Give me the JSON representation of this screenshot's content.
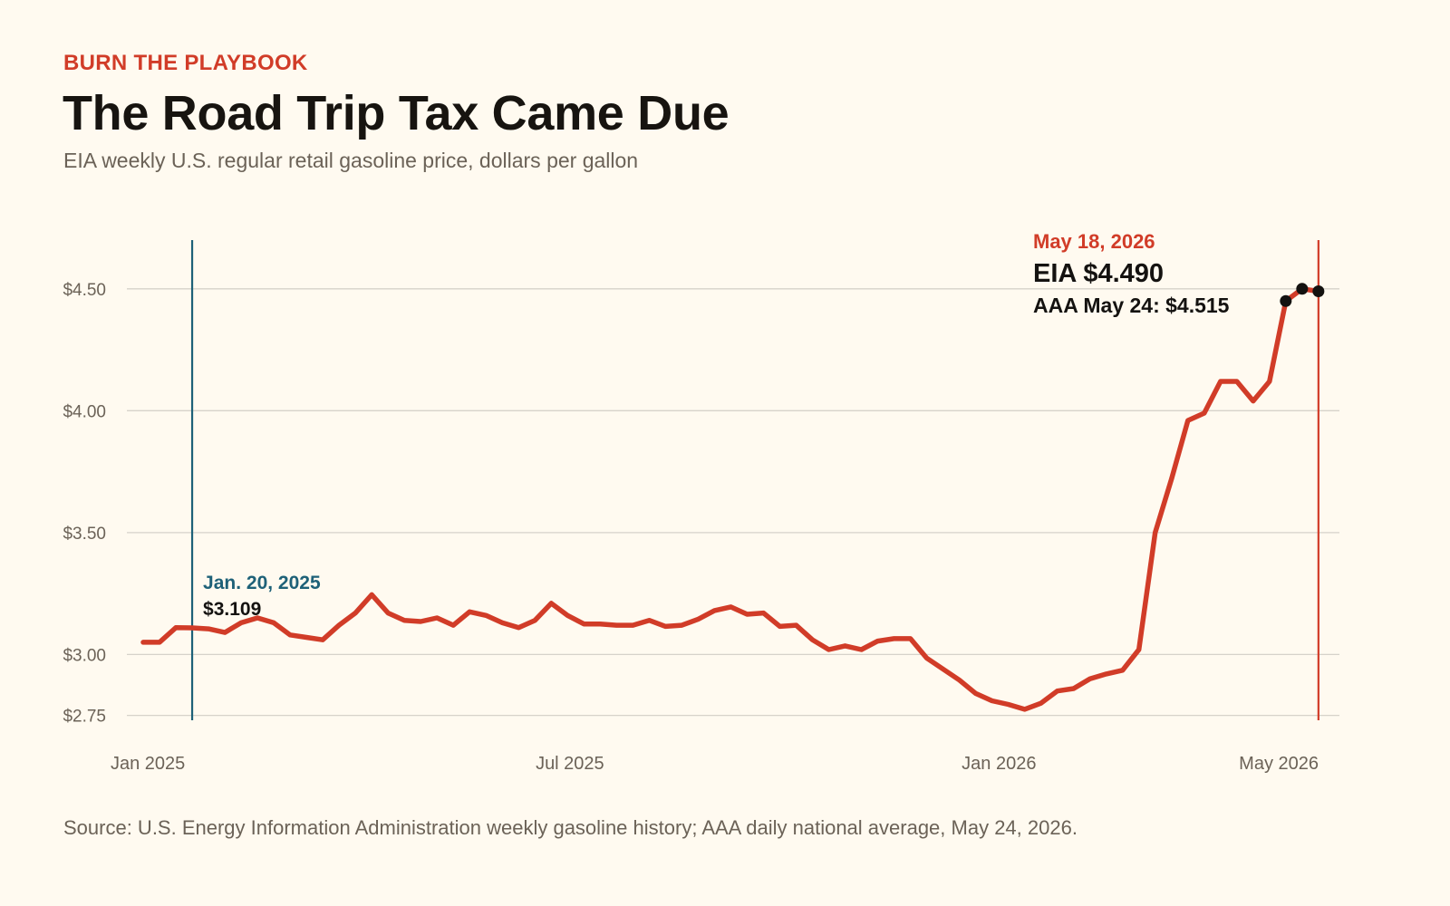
{
  "header": {
    "kicker": "BURN THE PLAYBOOK",
    "title": "The Road Trip Tax Came Due",
    "subtitle": "EIA weekly U.S. regular retail gasoline price, dollars per gallon"
  },
  "footer": {
    "source": "Source: U.S. Energy Information Administration weekly gasoline history; AAA daily national average, May 24, 2026."
  },
  "colors": {
    "line": "#d13c28",
    "accent_red": "#d13c28",
    "accent_blue": "#1e6178",
    "grid": "#d6d2ca",
    "dots": "#141210"
  },
  "chart_data": {
    "type": "line",
    "ylim": [
      2.73,
      4.7
    ],
    "yticks": [
      {
        "value": 2.75,
        "label": "$2.75"
      },
      {
        "value": 3.0,
        "label": "$3.00"
      },
      {
        "value": 3.5,
        "label": "$3.50"
      },
      {
        "value": 4.0,
        "label": "$4.00"
      },
      {
        "value": 4.5,
        "label": "$4.50"
      }
    ],
    "xlim": [
      "2024-12-23",
      "2026-05-27"
    ],
    "xticks": [
      {
        "date": "2025-01-01",
        "label": "Jan 2025"
      },
      {
        "date": "2025-07-01",
        "label": "Jul 2025"
      },
      {
        "date": "2026-01-01",
        "label": "Jan 2026"
      },
      {
        "date": "2026-05-01",
        "label": "May 2026"
      }
    ],
    "grid": true,
    "series": [
      {
        "points": [
          [
            "2024-12-30",
            3.05
          ],
          [
            "2025-01-06",
            3.05
          ],
          [
            "2025-01-13",
            3.11
          ],
          [
            "2025-01-20",
            3.109
          ],
          [
            "2025-01-27",
            3.105
          ],
          [
            "2025-02-03",
            3.09
          ],
          [
            "2025-02-10",
            3.13
          ],
          [
            "2025-02-17",
            3.15
          ],
          [
            "2025-02-24",
            3.13
          ],
          [
            "2025-03-03",
            3.08
          ],
          [
            "2025-03-10",
            3.07
          ],
          [
            "2025-03-17",
            3.06
          ],
          [
            "2025-03-24",
            3.12
          ],
          [
            "2025-03-31",
            3.17
          ],
          [
            "2025-04-07",
            3.245
          ],
          [
            "2025-04-14",
            3.17
          ],
          [
            "2025-04-21",
            3.14
          ],
          [
            "2025-04-28",
            3.135
          ],
          [
            "2025-05-05",
            3.15
          ],
          [
            "2025-05-12",
            3.12
          ],
          [
            "2025-05-19",
            3.175
          ],
          [
            "2025-05-26",
            3.16
          ],
          [
            "2025-06-02",
            3.13
          ],
          [
            "2025-06-09",
            3.11
          ],
          [
            "2025-06-16",
            3.14
          ],
          [
            "2025-06-23",
            3.21
          ],
          [
            "2025-06-30",
            3.16
          ],
          [
            "2025-07-07",
            3.125
          ],
          [
            "2025-07-14",
            3.125
          ],
          [
            "2025-07-21",
            3.12
          ],
          [
            "2025-07-28",
            3.12
          ],
          [
            "2025-08-04",
            3.14
          ],
          [
            "2025-08-11",
            3.115
          ],
          [
            "2025-08-18",
            3.12
          ],
          [
            "2025-08-25",
            3.145
          ],
          [
            "2025-09-01",
            3.18
          ],
          [
            "2025-09-08",
            3.195
          ],
          [
            "2025-09-15",
            3.165
          ],
          [
            "2025-09-22",
            3.17
          ],
          [
            "2025-09-29",
            3.115
          ],
          [
            "2025-10-06",
            3.12
          ],
          [
            "2025-10-13",
            3.06
          ],
          [
            "2025-10-20",
            3.02
          ],
          [
            "2025-10-27",
            3.035
          ],
          [
            "2025-11-03",
            3.02
          ],
          [
            "2025-11-10",
            3.055
          ],
          [
            "2025-11-17",
            3.065
          ],
          [
            "2025-11-24",
            3.065
          ],
          [
            "2025-12-01",
            2.985
          ],
          [
            "2025-12-08",
            2.94
          ],
          [
            "2025-12-15",
            2.895
          ],
          [
            "2025-12-22",
            2.84
          ],
          [
            "2025-12-29",
            2.81
          ],
          [
            "2026-01-05",
            2.795
          ],
          [
            "2026-01-12",
            2.775
          ],
          [
            "2026-01-19",
            2.8
          ],
          [
            "2026-01-26",
            2.85
          ],
          [
            "2026-02-02",
            2.86
          ],
          [
            "2026-02-09",
            2.9
          ],
          [
            "2026-02-16",
            2.92
          ],
          [
            "2026-02-23",
            2.935
          ],
          [
            "2026-03-02",
            3.02
          ],
          [
            "2026-03-09",
            3.5
          ],
          [
            "2026-03-16",
            3.72
          ],
          [
            "2026-03-23",
            3.96
          ],
          [
            "2026-03-30",
            3.99
          ],
          [
            "2026-04-06",
            4.12
          ],
          [
            "2026-04-13",
            4.12
          ],
          [
            "2026-04-20",
            4.04
          ],
          [
            "2026-04-27",
            4.12
          ],
          [
            "2026-05-04",
            4.45
          ],
          [
            "2026-05-11",
            4.5
          ],
          [
            "2026-05-18",
            4.49
          ]
        ]
      }
    ],
    "markers": [
      "2026-05-04",
      "2026-05-11",
      "2026-05-18"
    ],
    "annotations": [
      {
        "date": "2025-01-20",
        "heading": "Jan. 20, 2025",
        "value": "$3.109",
        "color": "#1e6178"
      },
      {
        "date": "2026-05-18",
        "heading": "May 18, 2026",
        "value": "EIA $4.490",
        "extra": "AAA May 24: $4.515",
        "color": "#d13c28"
      }
    ]
  }
}
